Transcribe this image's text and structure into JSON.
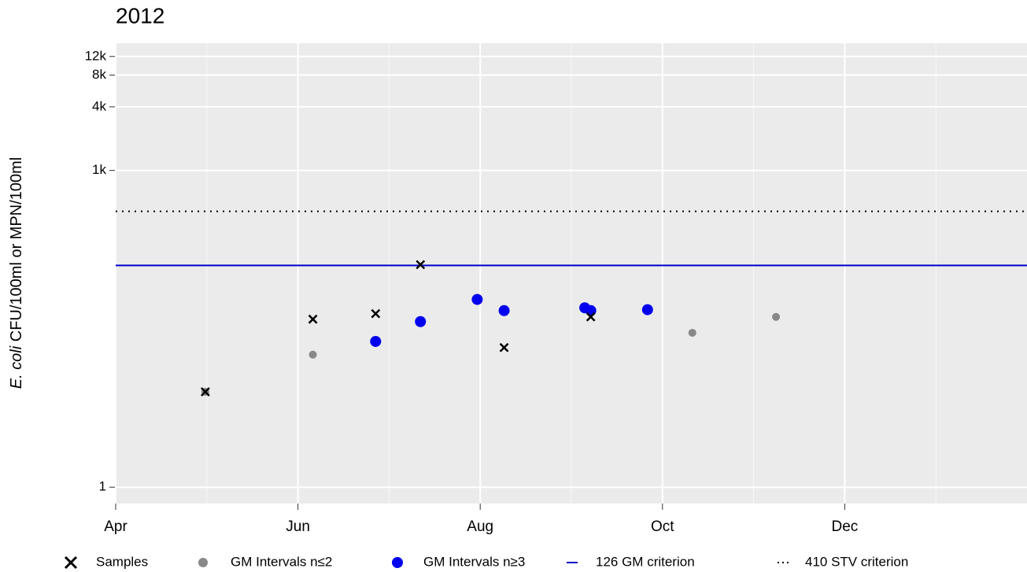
{
  "chart_data": {
    "type": "scatter",
    "title": "2012",
    "ylabel_italic": "E. coli",
    "ylabel": "CFU/100ml or MPN/100ml",
    "log_y": true,
    "grid": true,
    "legend": "bottom",
    "xlim": [
      "2012-04-01",
      "2013-01-31"
    ],
    "xticks": [
      {
        "value": "2012-04-01",
        "label": "Apr"
      },
      {
        "value": "2012-06-01",
        "label": "Jun"
      },
      {
        "value": "2012-08-01",
        "label": "Aug"
      },
      {
        "value": "2012-10-01",
        "label": "Oct"
      },
      {
        "value": "2012-12-01",
        "label": "Dec"
      }
    ],
    "ylim": [
      0.7,
      16000
    ],
    "yticks": [
      1,
      {
        "value": 1000,
        "label": "1k"
      },
      {
        "value": 4000,
        "label": "4k"
      },
      {
        "value": 8000,
        "label": "8k"
      },
      {
        "value": 12000,
        "label": "12k"
      }
    ],
    "series": [
      {
        "name": "Samples",
        "color": "#000000",
        "marker": "x",
        "x": [
          "2012-05-01",
          "2012-06-06",
          "2012-06-27",
          "2012-07-12",
          "2012-08-09",
          "2012-09-07"
        ],
        "values": [
          8,
          39,
          44,
          128,
          21,
          41
        ]
      },
      {
        "name": "GM Intervals n≤2",
        "color": "#888888",
        "marker": "small-dot",
        "x": [
          "2012-05-01",
          "2012-06-06",
          "2012-10-11",
          "2012-11-08"
        ],
        "values": [
          8,
          18,
          29,
          41
        ]
      },
      {
        "name": "GM Intervals n≥3",
        "color": "#0000ee",
        "marker": "dot",
        "x": [
          "2012-06-27",
          "2012-07-12",
          "2012-07-31",
          "2012-08-09",
          "2012-09-05",
          "2012-09-07",
          "2012-09-26"
        ],
        "values": [
          24,
          37,
          60,
          47,
          50,
          47,
          48
        ]
      }
    ],
    "reference_lines": [
      {
        "name": "126 GM criterion",
        "value": 126,
        "color": "#0000cc",
        "style": "solid"
      },
      {
        "name": "410 STV criterion",
        "value": 410,
        "color": "#000000",
        "style": "dotted"
      }
    ]
  }
}
